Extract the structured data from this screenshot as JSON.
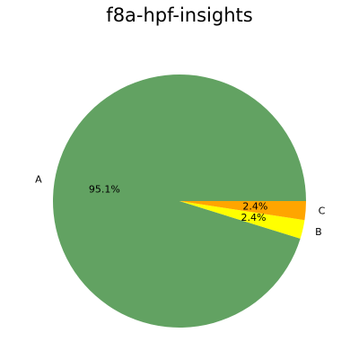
{
  "chart_data": {
    "type": "pie",
    "title": "f8a-hpf-insights",
    "categories": [
      "A",
      "B",
      "C"
    ],
    "values": [
      95.1,
      2.4,
      2.4
    ],
    "value_labels": [
      "95.1%",
      "2.4%",
      "2.4%"
    ],
    "colors": {
      "A": "#62a262",
      "B": "#ffff00",
      "C": "#ffa500"
    },
    "start_angle_deg": 0,
    "direction": "counterclockwise",
    "legend": "none"
  }
}
